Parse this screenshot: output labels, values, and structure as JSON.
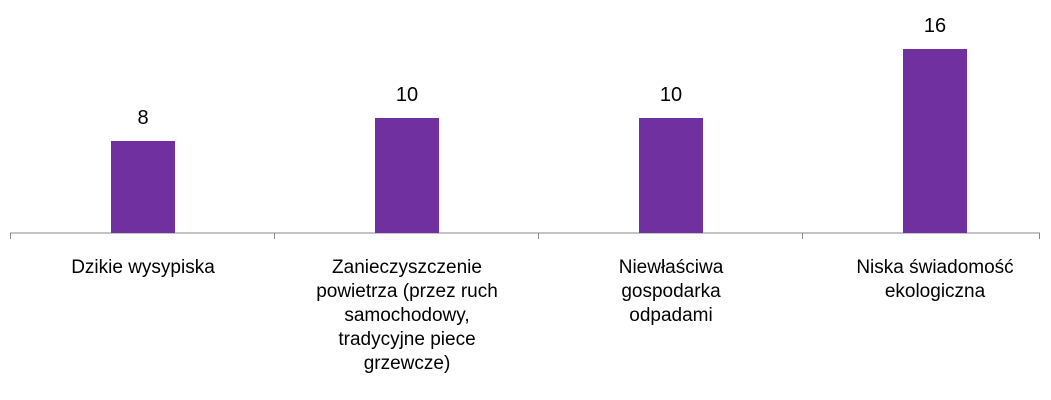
{
  "chart_data": {
    "type": "bar",
    "categories": [
      "Dzikie wysypiska",
      "Zanieczyszczenie\npowietrza (przez ruch\nsamochodowy,\ntradycyjne piece\ngrzewcze)",
      "Niewłaściwa\ngospodarka\nodpadami",
      "Niska świadomość\nekologiczna"
    ],
    "values": [
      8,
      10,
      10,
      16
    ],
    "color": "#7030a0",
    "data_labels": true
  }
}
